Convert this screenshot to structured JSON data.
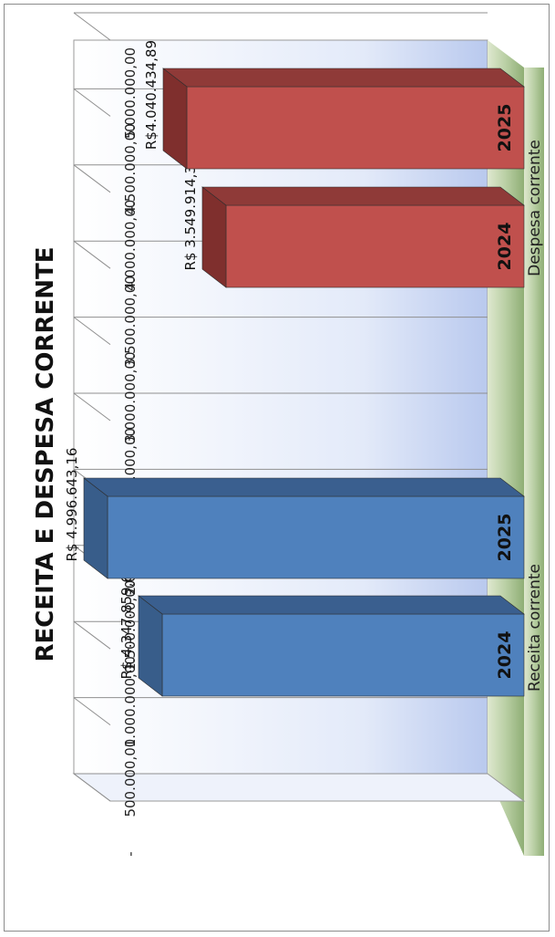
{
  "chart_data": {
    "type": "bar",
    "title": "RECEITA E DESPESA CORRENTE",
    "categories": [
      "Receita corrente",
      "Despesa corrente"
    ],
    "series": [
      {
        "name": "2024",
        "values": [
          4347859.68,
          3549914.34
        ],
        "color": "#4f81bd"
      },
      {
        "name": "2025",
        "values": [
          4996643.16,
          4040434.89
        ],
        "color": "#c0504d"
      }
    ],
    "data_labels": [
      [
        "R$ 4.347.859,68",
        "R$ 3.549.914,34"
      ],
      [
        "R$ 4.996.643,16",
        "R$4.040.434,89"
      ]
    ],
    "bar_labels": [
      [
        "2024",
        "2024"
      ],
      [
        "2025",
        "2025"
      ]
    ],
    "ylim": [
      0,
      5000000
    ],
    "yticks": [
      "-",
      "500.000,00",
      "1.000.000,00",
      "1.500.000,00",
      "2.000.000,00",
      "2.500.000,00",
      "3.000.000,00",
      "3.500.000,00",
      "4.000.000,00",
      "4.500.000,00",
      "5.000.000,00"
    ],
    "grid": true,
    "legend": "none",
    "orientation": "rotated-90-ccw",
    "colors": {
      "receita": "#4f81bd",
      "despesa": "#c0504d"
    }
  }
}
